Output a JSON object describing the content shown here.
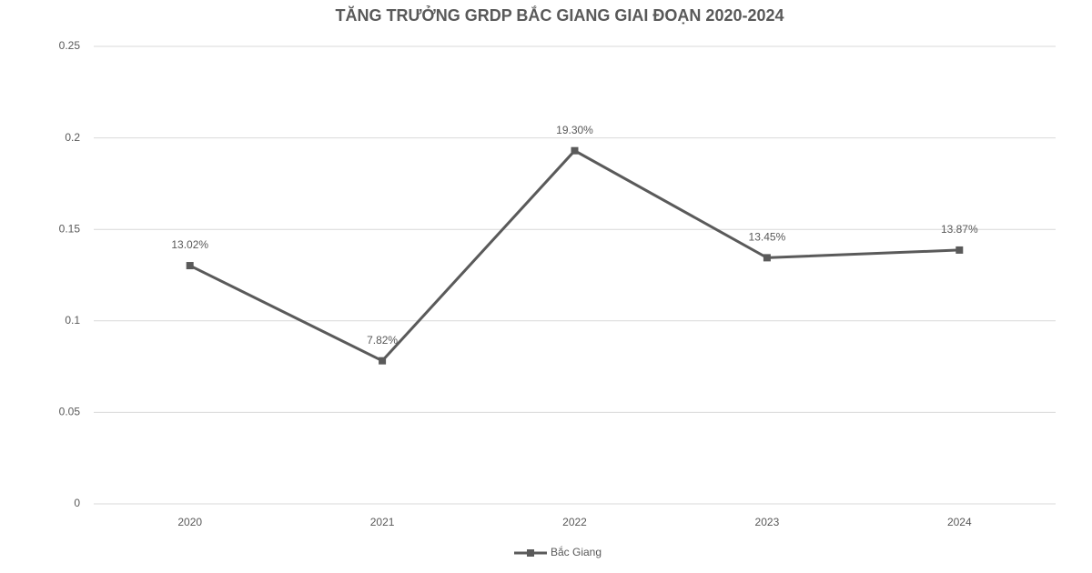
{
  "chart_data": {
    "type": "line",
    "title": "TĂNG TRƯỞNG GRDP BẮC GIANG GIAI ĐOẠN 2020-2024",
    "categories": [
      "2020",
      "2021",
      "2022",
      "2023",
      "2024"
    ],
    "series": [
      {
        "name": "Bắc Giang",
        "color": "#5a5a5a",
        "values": [
          0.1302,
          0.0782,
          0.193,
          0.1345,
          0.1387
        ],
        "value_labels": [
          "13.02%",
          "7.82%",
          "19.30%",
          "13.45%",
          "13.87%"
        ]
      }
    ],
    "ylim": [
      0,
      0.25
    ],
    "yticks": [
      0,
      0.05,
      0.1,
      0.15,
      0.2,
      0.25
    ],
    "grid": true,
    "legend": "bottom"
  }
}
